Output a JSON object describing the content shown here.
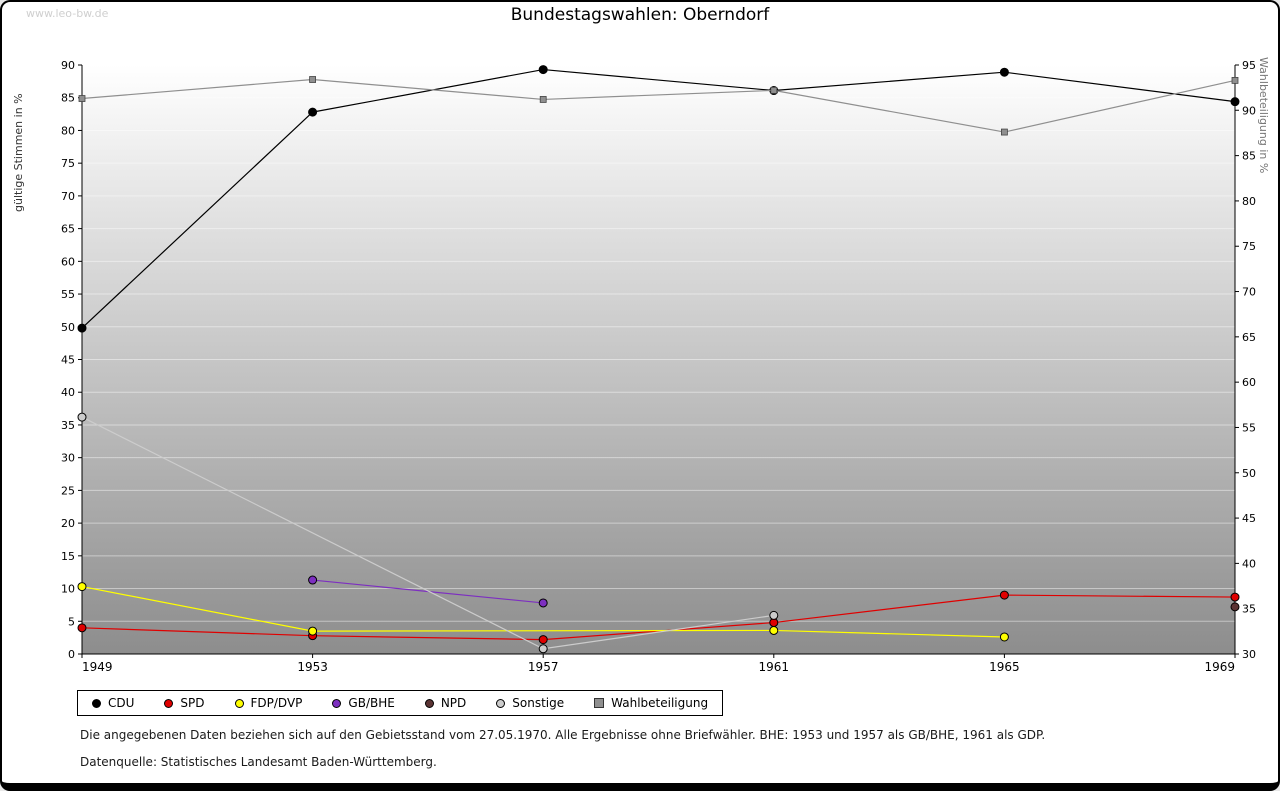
{
  "watermark": "www.leo-bw.de",
  "title": "Bundestagswahlen: Oberndorf",
  "footnotes": [
    "Die angegebenen Daten beziehen sich auf den Gebietsstand vom 27.05.1970. Alle Ergebnisse ohne Briefwähler. BHE: 1953 und 1957 als GB/BHE, 1961 als GDP.",
    "Datenquelle: Statistisches Landesamt Baden-Württemberg."
  ],
  "chart_data": {
    "type": "line",
    "x": [
      1949,
      1953,
      1957,
      1961,
      1965,
      1969
    ],
    "left_axis": {
      "label": "gültige Stimmen in %",
      "min": 0,
      "max": 90,
      "step": 5
    },
    "right_axis": {
      "label": "Wahlbeteiligung in %",
      "min": 30,
      "max": 95,
      "step": 5
    },
    "legend_position": "bottom",
    "grid": "white horizontal lines on grey gradient background",
    "series": [
      {
        "name": "CDU",
        "color": "#000000",
        "axis": "left",
        "marker": "circle",
        "points": [
          [
            1949,
            49.8
          ],
          [
            1953,
            82.8
          ],
          [
            1957,
            89.3
          ],
          [
            1961,
            86.1
          ],
          [
            1965,
            88.9
          ],
          [
            1969,
            84.4
          ]
        ]
      },
      {
        "name": "SPD",
        "color": "#e00000",
        "axis": "left",
        "marker": "circle",
        "points": [
          [
            1949,
            4.0
          ],
          [
            1953,
            2.8
          ],
          [
            1957,
            2.2
          ],
          [
            1961,
            4.8
          ],
          [
            1965,
            9.0
          ],
          [
            1969,
            8.7
          ]
        ]
      },
      {
        "name": "FDP/DVP",
        "color": "#ffff00",
        "axis": "left",
        "marker": "circle",
        "points": [
          [
            1949,
            10.3
          ],
          [
            1953,
            3.5
          ],
          [
            1961,
            3.6
          ],
          [
            1965,
            2.6
          ]
        ]
      },
      {
        "name": "GB/BHE",
        "color": "#7d2fc0",
        "axis": "left",
        "marker": "circle",
        "points": [
          [
            1953,
            11.3
          ],
          [
            1957,
            7.8
          ]
        ]
      },
      {
        "name": "NPD",
        "color": "#5b3333",
        "axis": "left",
        "marker": "circle",
        "points": [
          [
            1969,
            7.2
          ]
        ]
      },
      {
        "name": "Sonstige",
        "color": "#cccccc",
        "axis": "left",
        "marker": "circle",
        "points": [
          [
            1949,
            36.2
          ],
          [
            1957,
            0.8
          ],
          [
            1961,
            5.9
          ]
        ]
      },
      {
        "name": "Wahlbeteiligung",
        "color": "#8f8f8f",
        "axis": "right",
        "marker": "square",
        "points": [
          [
            1949,
            91.3
          ],
          [
            1953,
            93.4
          ],
          [
            1957,
            91.2
          ],
          [
            1961,
            92.2
          ],
          [
            1965,
            87.6
          ],
          [
            1969,
            93.3
          ]
        ]
      }
    ]
  }
}
